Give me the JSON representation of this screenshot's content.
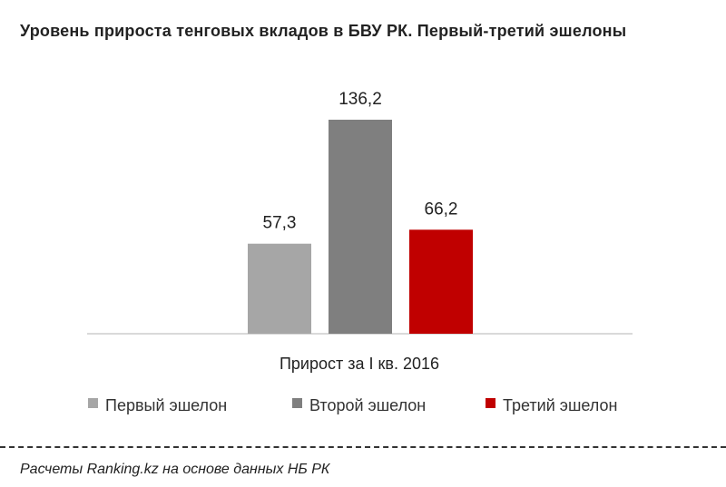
{
  "chart_data": {
    "type": "bar",
    "title": "Уровень прироста тенговых вкладов  в БВУ РК. Первый-третий эшелоны",
    "categories": [
      "Прирост за I кв. 2016"
    ],
    "series": [
      {
        "name": "Первый эшелон",
        "values": [
          57.3
        ],
        "label": "57,3",
        "color": "#a6a6a6"
      },
      {
        "name": "Второй эшелон",
        "values": [
          136.2
        ],
        "label": "136,2",
        "color": "#7f7f7f"
      },
      {
        "name": "Третий эшелон",
        "values": [
          66.2
        ],
        "label": "66,2",
        "color": "#c00000"
      }
    ],
    "ylim": [
      0,
      136.2
    ],
    "grid": false,
    "legend": "bottom",
    "xlabel": "",
    "ylabel": ""
  },
  "footer": {
    "source": "Расчеты Ranking.kz на основе данных  НБ РК"
  }
}
